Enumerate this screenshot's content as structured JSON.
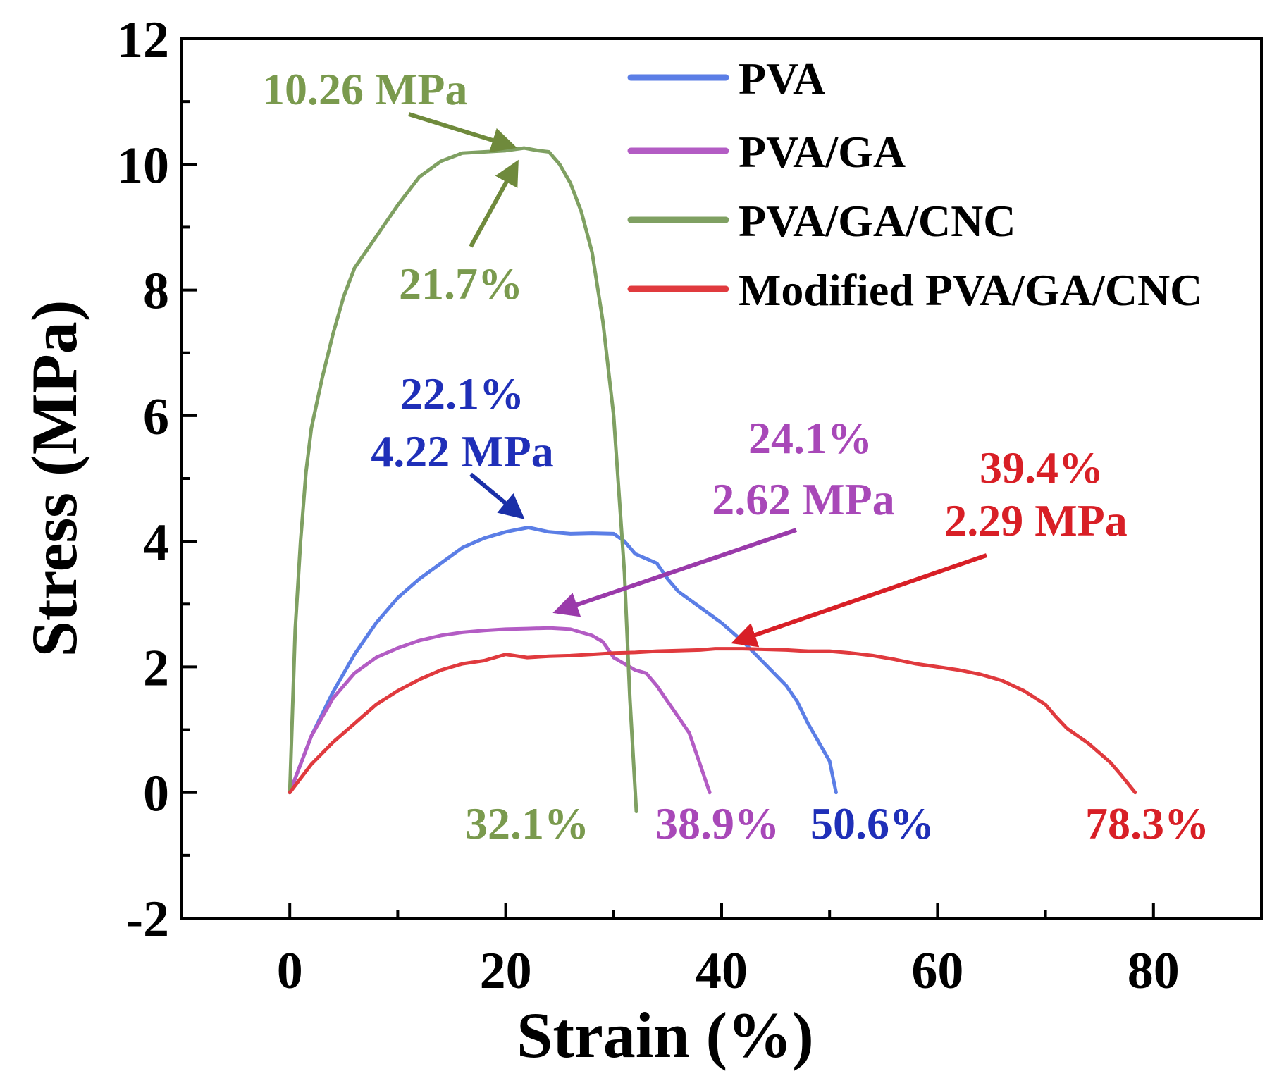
{
  "chart_data": {
    "type": "line",
    "title": "",
    "xlabel": "Strain (%)",
    "ylabel": "Stress (MPa)",
    "xlim": [
      -10,
      90
    ],
    "ylim": [
      -2,
      12
    ],
    "xticks": [
      0,
      20,
      40,
      60,
      80
    ],
    "yticks": [
      -2,
      0,
      2,
      4,
      6,
      8,
      10,
      12
    ],
    "x_minor_step": 10,
    "y_minor_step": 1,
    "legend_position": "top-right",
    "series": [
      {
        "name": "PVA",
        "color": "#5b7ee6",
        "points": [
          [
            0,
            0
          ],
          [
            2,
            0.9
          ],
          [
            4,
            1.6
          ],
          [
            6,
            2.2
          ],
          [
            8,
            2.7
          ],
          [
            10,
            3.1
          ],
          [
            12,
            3.4
          ],
          [
            14,
            3.65
          ],
          [
            16,
            3.9
          ],
          [
            18,
            4.05
          ],
          [
            20,
            4.15
          ],
          [
            22.1,
            4.22
          ],
          [
            24,
            4.15
          ],
          [
            26,
            4.12
          ],
          [
            28,
            4.13
          ],
          [
            30,
            4.12
          ],
          [
            31,
            4.0
          ],
          [
            32,
            3.8
          ],
          [
            34,
            3.65
          ],
          [
            35,
            3.4
          ],
          [
            36,
            3.2
          ],
          [
            38,
            2.95
          ],
          [
            40,
            2.7
          ],
          [
            42,
            2.4
          ],
          [
            44,
            2.05
          ],
          [
            46,
            1.7
          ],
          [
            47,
            1.45
          ],
          [
            48,
            1.1
          ],
          [
            49,
            0.8
          ],
          [
            50,
            0.5
          ],
          [
            50.6,
            0
          ]
        ]
      },
      {
        "name": "PVA/GA",
        "color": "#b35cc4",
        "points": [
          [
            0,
            0
          ],
          [
            2,
            0.9
          ],
          [
            4,
            1.5
          ],
          [
            6,
            1.9
          ],
          [
            8,
            2.15
          ],
          [
            10,
            2.3
          ],
          [
            12,
            2.42
          ],
          [
            14,
            2.5
          ],
          [
            16,
            2.55
          ],
          [
            18,
            2.58
          ],
          [
            20,
            2.6
          ],
          [
            22,
            2.61
          ],
          [
            24.1,
            2.62
          ],
          [
            26,
            2.6
          ],
          [
            28,
            2.5
          ],
          [
            29,
            2.4
          ],
          [
            30,
            2.15
          ],
          [
            31,
            2.05
          ],
          [
            32,
            1.95
          ],
          [
            33,
            1.9
          ],
          [
            34,
            1.7
          ],
          [
            35,
            1.45
          ],
          [
            36,
            1.2
          ],
          [
            37,
            0.95
          ],
          [
            37.5,
            0.7
          ],
          [
            38,
            0.45
          ],
          [
            38.5,
            0.2
          ],
          [
            38.9,
            0
          ]
        ]
      },
      {
        "name": "PVA/GA/CNC",
        "color": "#7fa062",
        "points": [
          [
            0,
            0
          ],
          [
            0.5,
            2.6
          ],
          [
            1,
            4.0
          ],
          [
            1.5,
            5.1
          ],
          [
            2,
            5.8
          ],
          [
            3,
            6.6
          ],
          [
            4,
            7.3
          ],
          [
            5,
            7.9
          ],
          [
            6,
            8.35
          ],
          [
            8,
            8.85
          ],
          [
            10,
            9.35
          ],
          [
            12,
            9.8
          ],
          [
            14,
            10.05
          ],
          [
            16,
            10.18
          ],
          [
            18,
            10.2
          ],
          [
            20,
            10.22
          ],
          [
            21.7,
            10.26
          ],
          [
            23,
            10.22
          ],
          [
            24,
            10.2
          ],
          [
            25,
            10.0
          ],
          [
            26,
            9.7
          ],
          [
            27,
            9.25
          ],
          [
            28,
            8.6
          ],
          [
            29,
            7.5
          ],
          [
            30,
            6.0
          ],
          [
            31,
            3.5
          ],
          [
            31.5,
            1.5
          ],
          [
            32.1,
            -0.3
          ]
        ]
      },
      {
        "name": "Modified PVA/GA/CNC",
        "color": "#e03a3e",
        "points": [
          [
            0,
            0
          ],
          [
            2,
            0.45
          ],
          [
            4,
            0.8
          ],
          [
            6,
            1.1
          ],
          [
            8,
            1.4
          ],
          [
            10,
            1.62
          ],
          [
            12,
            1.8
          ],
          [
            14,
            1.95
          ],
          [
            16,
            2.05
          ],
          [
            18,
            2.1
          ],
          [
            20,
            2.2
          ],
          [
            22,
            2.15
          ],
          [
            24,
            2.17
          ],
          [
            26,
            2.18
          ],
          [
            28,
            2.2
          ],
          [
            30,
            2.22
          ],
          [
            32,
            2.23
          ],
          [
            34,
            2.25
          ],
          [
            36,
            2.26
          ],
          [
            38,
            2.27
          ],
          [
            39.4,
            2.29
          ],
          [
            42,
            2.29
          ],
          [
            44,
            2.28
          ],
          [
            46,
            2.27
          ],
          [
            48,
            2.25
          ],
          [
            50,
            2.25
          ],
          [
            52,
            2.22
          ],
          [
            54,
            2.18
          ],
          [
            56,
            2.12
          ],
          [
            58,
            2.05
          ],
          [
            60,
            2.0
          ],
          [
            62,
            1.95
          ],
          [
            64,
            1.88
          ],
          [
            66,
            1.78
          ],
          [
            68,
            1.62
          ],
          [
            70,
            1.4
          ],
          [
            71,
            1.2
          ],
          [
            72,
            1.02
          ],
          [
            74,
            0.78
          ],
          [
            76,
            0.48
          ],
          [
            77,
            0.28
          ],
          [
            78.3,
            0
          ]
        ]
      }
    ],
    "annotations": [
      {
        "id": "a-pva-gac-cnc-stress",
        "text": "10.26 MPa",
        "color": "#7a9a4e"
      },
      {
        "id": "a-pva-gac-cnc-strain",
        "text": "21.7%",
        "color": "#7a9a4e"
      },
      {
        "id": "a-pva-strain",
        "text": "22.1%",
        "color": "#1f2fb8"
      },
      {
        "id": "a-pva-stress",
        "text": "4.22 MPa",
        "color": "#1f2fb8"
      },
      {
        "id": "a-pvaga-strain",
        "text": "24.1%",
        "color": "#a848b8"
      },
      {
        "id": "a-pvaga-stress",
        "text": "2.62 MPa",
        "color": "#a848b8"
      },
      {
        "id": "a-mod-strain",
        "text": "39.4%",
        "color": "#d81f26"
      },
      {
        "id": "a-mod-stress",
        "text": "2.29 MPa",
        "color": "#d81f26"
      },
      {
        "id": "a-break-cnc",
        "text": "32.1%",
        "color": "#7a9a4e"
      },
      {
        "id": "a-break-pvaga",
        "text": "38.9%",
        "color": "#a848b8"
      },
      {
        "id": "a-break-pva",
        "text": "50.6%",
        "color": "#1f2fb8"
      },
      {
        "id": "a-break-mod",
        "text": "78.3%",
        "color": "#d81f26"
      }
    ]
  }
}
